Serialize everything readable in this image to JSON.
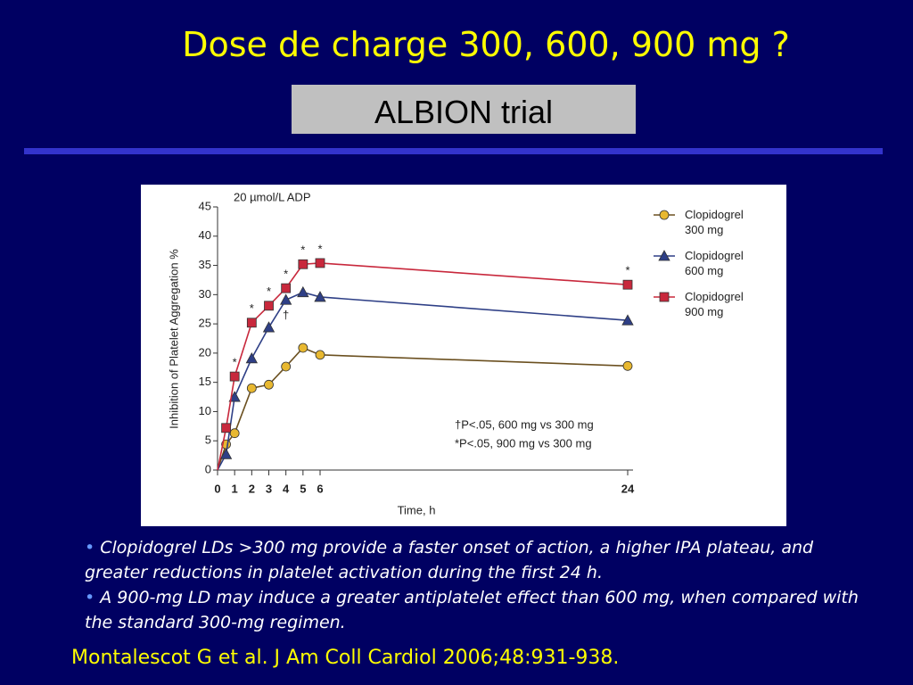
{
  "slide": {
    "title": "Dose de charge 300, 600, 900 mg ?",
    "subtitle": "ALBION trial",
    "bullets": [
      "Clopidogrel LDs >300 mg provide a faster onset of action, a higher IPA plateau, and greater reductions in platelet activation during the first 24 h.",
      "A 900-mg LD may induce a greater antiplatelet effect than 600 mg, when compared with the standard 300-mg regimen."
    ],
    "citation": "Montalescot G et al. J Am Coll Cardiol 2006;48:931-938."
  },
  "chart_data": {
    "type": "line",
    "note": "20 µmol/L ADP",
    "xlabel": "Time, h",
    "ylabel": "Inhibition of Platelet Aggregation %",
    "x": [
      0,
      0.5,
      1,
      2,
      3,
      4,
      5,
      6,
      24
    ],
    "series": [
      {
        "name": "Clopidogrel 300 mg",
        "color": "#e8b830",
        "marker": "circle",
        "values": [
          0,
          4.4,
          6.3,
          14,
          14.6,
          17.7,
          20.9,
          19.7,
          17.8
        ]
      },
      {
        "name": "Clopidogrel 600 mg",
        "color": "#2e3f86",
        "marker": "triangle",
        "values": [
          0,
          2.7,
          12.5,
          19.1,
          24.4,
          29.1,
          30.4,
          29.6,
          25.6
        ],
        "point_labels": [
          null,
          null,
          null,
          null,
          null,
          "†",
          null,
          null,
          null
        ]
      },
      {
        "name": "Clopidogrel 900 mg",
        "color": "#c8283c",
        "marker": "square",
        "values": [
          0,
          7.2,
          16,
          25.2,
          28.1,
          31.1,
          35.2,
          35.4,
          31.7
        ],
        "point_labels": [
          null,
          null,
          "*",
          "*",
          "*",
          "*",
          "*",
          "*",
          "*"
        ]
      }
    ],
    "xlim": [
      0,
      24
    ],
    "ylim": [
      0,
      45
    ],
    "xticks": [
      0,
      1,
      2,
      3,
      4,
      5,
      6,
      24
    ],
    "yticks": [
      0,
      5,
      10,
      15,
      20,
      25,
      30,
      35,
      40,
      45
    ],
    "footnotes": [
      "†P<.05, 600 mg vs 300 mg",
      "*P<.05, 900 mg vs 300 mg"
    ]
  }
}
